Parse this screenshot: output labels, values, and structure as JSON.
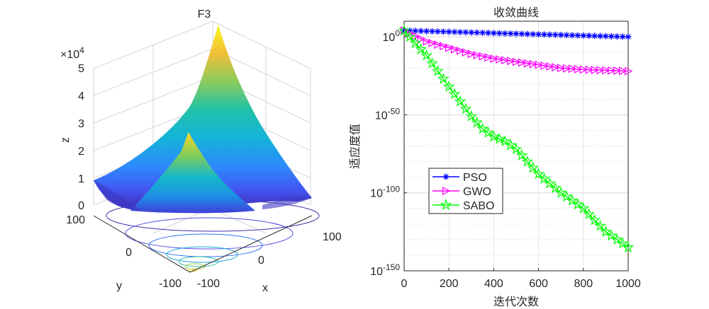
{
  "chart_data": [
    {
      "type": "surface3d",
      "title": "F3",
      "xlabel": "x",
      "ylabel": "y",
      "zlabel": "z",
      "x_ticks": [
        "-100",
        "0",
        "100"
      ],
      "y_ticks": [
        "-100",
        "0",
        "100"
      ],
      "z_ticks": [
        "0",
        "1",
        "2",
        "3",
        "4",
        "5"
      ],
      "z_exponent": "×10",
      "z_exponent_power": "4",
      "xlim": [
        -100,
        100
      ],
      "ylim": [
        -100,
        100
      ],
      "zlim": [
        0,
        50000
      ],
      "colormap": "parula",
      "contour_at_base": true
    },
    {
      "type": "line",
      "title": "收敛曲线",
      "xlabel": "迭代次数",
      "ylabel": "适应度值",
      "xlim": [
        0,
        1000
      ],
      "x_ticks": [
        "0",
        "200",
        "400",
        "600",
        "800",
        "1000"
      ],
      "ylim_log10": [
        -150,
        10
      ],
      "y_scale": "log",
      "y_ticks": [
        {
          "base": "10",
          "exp": "0",
          "value": 0
        },
        {
          "base": "10",
          "exp": "-50",
          "value": -50
        },
        {
          "base": "10",
          "exp": "-100",
          "value": -100
        },
        {
          "base": "10",
          "exp": "-150",
          "value": -150
        }
      ],
      "grid": true,
      "legend_position": "lower-left",
      "series": [
        {
          "name": "PSO",
          "color": "#0000ff",
          "marker": "asterisk",
          "x": [
            0,
            1000
          ],
          "log10_y": [
            4,
            0
          ]
        },
        {
          "name": "GWO",
          "color": "#ff00ff",
          "marker": "triangle-right",
          "x": [
            0,
            100,
            200,
            300,
            400,
            500,
            600,
            700,
            800,
            900,
            1000
          ],
          "log10_y": [
            4,
            -3,
            -7,
            -11,
            -14,
            -16,
            -18,
            -20,
            -21,
            -21.5,
            -22
          ]
        },
        {
          "name": "SABO",
          "color": "#00ff00",
          "marker": "pentagram",
          "x": [
            0,
            100,
            200,
            300,
            350,
            400,
            450,
            500,
            550,
            600,
            700,
            800,
            900,
            1000
          ],
          "log10_y": [
            4,
            -12,
            -32,
            -51,
            -59,
            -64,
            -67,
            -72,
            -80,
            -88,
            -100,
            -110,
            -125,
            -135
          ]
        }
      ]
    }
  ]
}
